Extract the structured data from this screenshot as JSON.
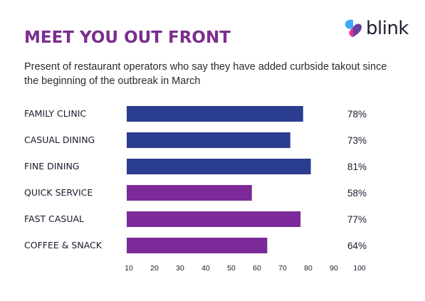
{
  "header": {
    "title": "MEET YOU OUT FRONT",
    "subtitle": "Present of restaurant operators who say they have added curbside takout since the beginning of the outbreak in March"
  },
  "logo": {
    "text": "blink",
    "colors": [
      "#3fa9f5",
      "#e0358f",
      "#6a3fa0"
    ]
  },
  "colors": {
    "title": "#7a2e8e",
    "bar_blue": "#2a3d8f",
    "bar_purple": "#7c2a9a"
  },
  "chart_data": {
    "type": "bar",
    "orientation": "horizontal",
    "categories": [
      "FAMILY CLINIC",
      "CASUAL DINING",
      "FINE DINING",
      "QUICK SERVICE",
      "FAST CASUAL",
      "COFFEE & SNACK"
    ],
    "values": [
      78,
      73,
      81,
      58,
      77,
      64
    ],
    "value_labels": [
      "78%",
      "73%",
      "81%",
      "58%",
      "77%",
      "64%"
    ],
    "bar_colors": [
      "#2a3d8f",
      "#2a3d8f",
      "#2a3d8f",
      "#7c2a9a",
      "#7c2a9a",
      "#7c2a9a"
    ],
    "x_ticks": [
      10,
      20,
      30,
      40,
      50,
      60,
      70,
      80,
      90,
      100
    ],
    "xlim": [
      10,
      100
    ],
    "grid": false,
    "legend": "none"
  }
}
